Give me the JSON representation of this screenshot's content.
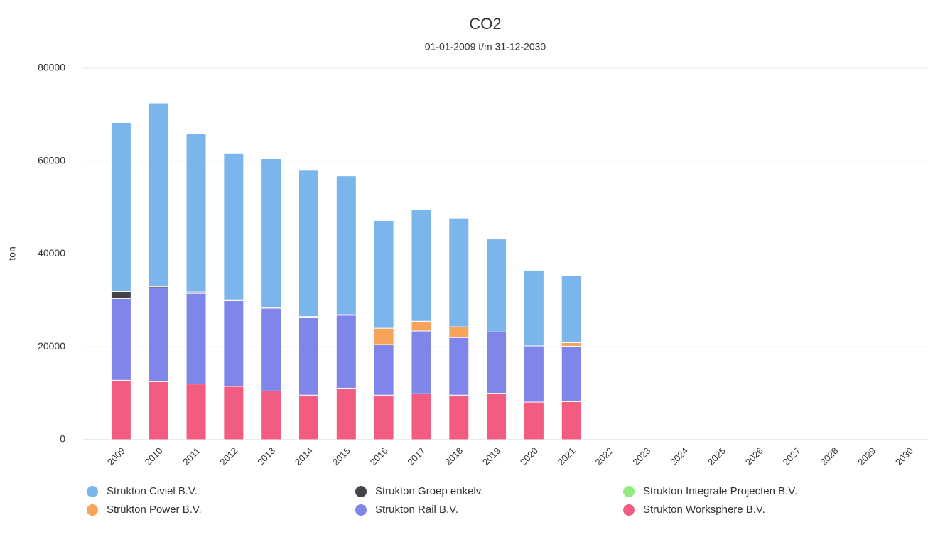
{
  "chart_data": {
    "type": "bar",
    "stacked": true,
    "title": "CO2",
    "subtitle": "01-01-2009 t/m 31-12-2030",
    "y_label": "ton",
    "categories": [
      "2009",
      "2010",
      "2011",
      "2012",
      "2013",
      "2014",
      "2015",
      "2016",
      "2017",
      "2018",
      "2019",
      "2020",
      "2021",
      "2022",
      "2023",
      "2024",
      "2025",
      "2026",
      "2027",
      "2028",
      "2029",
      "2030"
    ],
    "series": [
      {
        "name": "Strukton Worksphere B.V.",
        "color": "#f15c80",
        "values": [
          12800,
          12500,
          12000,
          11500,
          10500,
          9600,
          11100,
          9600,
          9900,
          9600,
          10000,
          8100,
          8200,
          null,
          null,
          null,
          null,
          null,
          null,
          null,
          null,
          null
        ]
      },
      {
        "name": "Strukton Rail B.V.",
        "color": "#8085e9",
        "values": [
          17600,
          20200,
          19500,
          18400,
          17800,
          16800,
          15700,
          10900,
          13500,
          12400,
          13200,
          12100,
          11900,
          null,
          null,
          null,
          null,
          null,
          null,
          null,
          null,
          null
        ]
      },
      {
        "name": "Strukton Power B.V.",
        "color": "#f7a35c",
        "values": [
          0,
          0,
          0,
          0,
          0,
          0,
          0,
          3500,
          2100,
          2300,
          0,
          0,
          800,
          null,
          null,
          null,
          null,
          null,
          null,
          null,
          null,
          null
        ]
      },
      {
        "name": "Strukton Integrale Projecten B.V.",
        "color": "#90ed7d",
        "values": [
          0,
          0,
          0,
          0,
          0,
          0,
          0,
          0,
          0,
          0,
          0,
          0,
          0,
          null,
          null,
          null,
          null,
          null,
          null,
          null,
          null,
          null
        ]
      },
      {
        "name": "Strukton Groep enkelv.",
        "color": "#434348",
        "values": [
          1500,
          300,
          300,
          200,
          200,
          100,
          100,
          0,
          0,
          0,
          0,
          0,
          0,
          null,
          null,
          null,
          null,
          null,
          null,
          null,
          null,
          null
        ]
      },
      {
        "name": "Strukton Civiel B.V.",
        "color": "#7cb5ec",
        "values": [
          36400,
          39500,
          34200,
          31500,
          32000,
          31500,
          29900,
          23200,
          24000,
          23400,
          20000,
          16300,
          14400,
          null,
          null,
          null,
          null,
          null,
          null,
          null,
          null,
          null
        ]
      }
    ],
    "legend_order": [
      5,
      4,
      3,
      2,
      1,
      0
    ],
    "ylim": [
      0,
      80000
    ],
    "yticks": [
      0,
      20000,
      40000,
      60000,
      80000
    ],
    "grid": true,
    "legend": "bottom"
  }
}
